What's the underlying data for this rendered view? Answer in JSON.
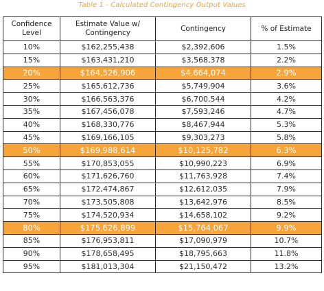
{
  "caption": "Table 1 - Calculated Contingency Output Values",
  "colors": {
    "accent": "#f7a43a",
    "caption": "#f2a33c",
    "border": "#2b2b2b"
  },
  "table": {
    "headers": {
      "confidence": [
        "Confidence",
        "Level"
      ],
      "estimate": [
        "Estimate Value w/",
        "Contingency"
      ],
      "contingency": [
        "Contingency"
      ],
      "percent": [
        "% of Estimate"
      ]
    },
    "rows": [
      {
        "confidence": "10%",
        "estimate": "$162,255,438",
        "contingency": "$2,392,606",
        "percent": "1.5%",
        "highlight": false
      },
      {
        "confidence": "15%",
        "estimate": "$163,431,210",
        "contingency": "$3,568,378",
        "percent": "2.2%",
        "highlight": false
      },
      {
        "confidence": "20%",
        "estimate": "$164,526,906",
        "contingency": "$4,664,074",
        "percent": "2.9%",
        "highlight": true
      },
      {
        "confidence": "25%",
        "estimate": "$165,612,736",
        "contingency": "$5,749,904",
        "percent": "3.6%",
        "highlight": false
      },
      {
        "confidence": "30%",
        "estimate": "$166,563,376",
        "contingency": "$6,700,544",
        "percent": "4.2%",
        "highlight": false
      },
      {
        "confidence": "35%",
        "estimate": "$167,456,078",
        "contingency": "$7,593,246",
        "percent": "4.7%",
        "highlight": false
      },
      {
        "confidence": "40%",
        "estimate": "$168,330,776",
        "contingency": "$8,467,944",
        "percent": "5.3%",
        "highlight": false
      },
      {
        "confidence": "45%",
        "estimate": "$169,166,105",
        "contingency": "$9,303,273",
        "percent": "5.8%",
        "highlight": false
      },
      {
        "confidence": "50%",
        "estimate": "$169,988,614",
        "contingency": "$10,125,782",
        "percent": "6.3%",
        "highlight": true
      },
      {
        "confidence": "55%",
        "estimate": "$170,853,055",
        "contingency": "$10,990,223",
        "percent": "6.9%",
        "highlight": false
      },
      {
        "confidence": "60%",
        "estimate": "$171,626,760",
        "contingency": "$11,763,928",
        "percent": "7.4%",
        "highlight": false
      },
      {
        "confidence": "65%",
        "estimate": "$172,474,867",
        "contingency": "$12,612,035",
        "percent": "7.9%",
        "highlight": false
      },
      {
        "confidence": "70%",
        "estimate": "$173,505,808",
        "contingency": "$13,642,976",
        "percent": "8.5%",
        "highlight": false
      },
      {
        "confidence": "75%",
        "estimate": "$174,520,934",
        "contingency": "$14,658,102",
        "percent": "9.2%",
        "highlight": false
      },
      {
        "confidence": "80%",
        "estimate": "$175,626,899",
        "contingency": "$15,764,067",
        "percent": "9.9%",
        "highlight": true
      },
      {
        "confidence": "85%",
        "estimate": "$176,953,811",
        "contingency": "$17,090,979",
        "percent": "10.7%",
        "highlight": false
      },
      {
        "confidence": "90%",
        "estimate": "$178,658,495",
        "contingency": "$18,795,663",
        "percent": "11.8%",
        "highlight": false
      },
      {
        "confidence": "95%",
        "estimate": "$181,013,304",
        "contingency": "$21,150,472",
        "percent": "13.2%",
        "highlight": false
      }
    ]
  }
}
